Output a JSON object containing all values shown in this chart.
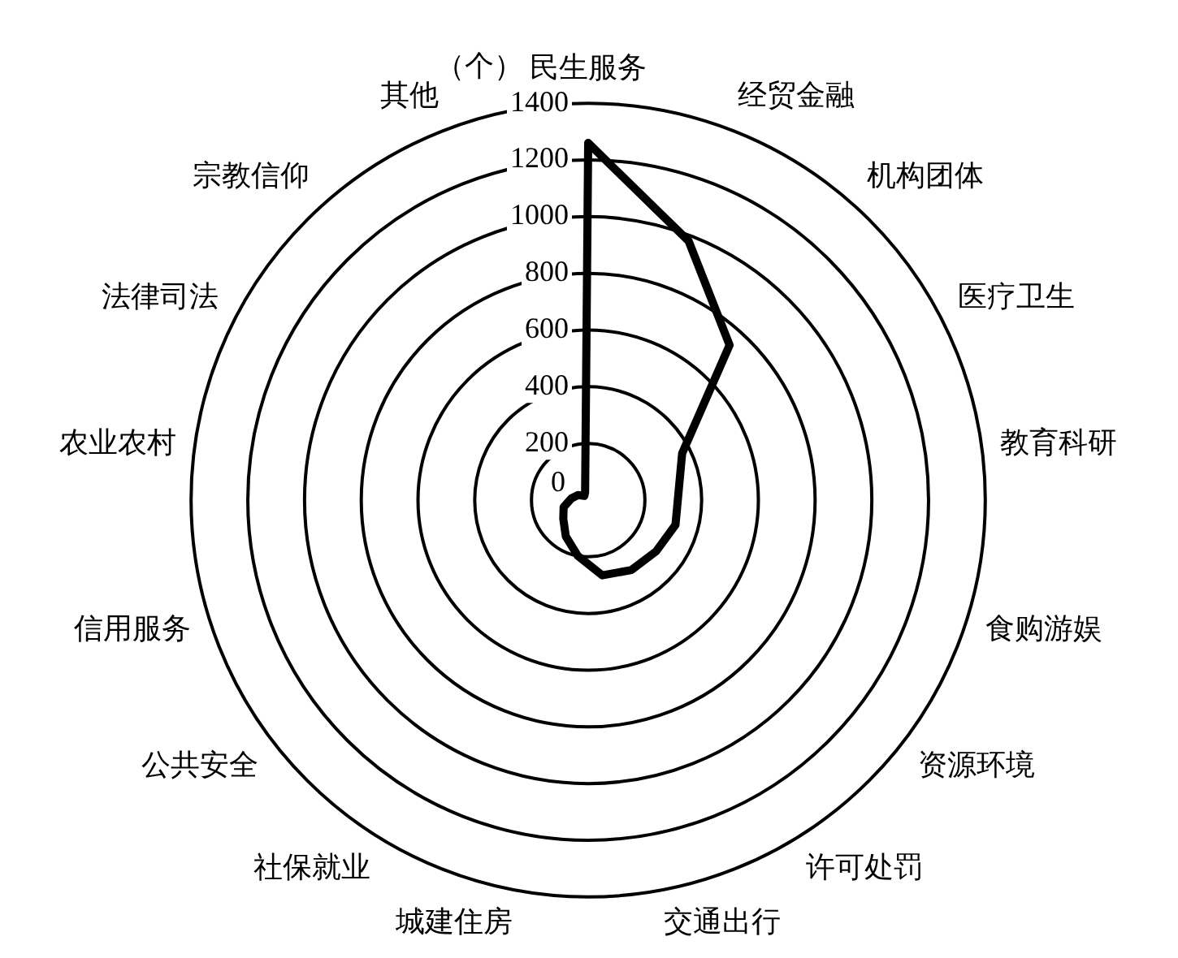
{
  "chart_data": {
    "type": "radar",
    "ylabel": "（个）",
    "categories": [
      "民生服务",
      "经贸金融",
      "机构团体",
      "医疗卫生",
      "教育科研",
      "食购游娱",
      "资源环境",
      "许可处罚",
      "交通出行",
      "城建住房",
      "社保就业",
      "公共安全",
      "信用服务",
      "农业农村",
      "法律司法",
      "宗教信仰",
      "其他"
    ],
    "series": [
      {
        "color": "#000000",
        "values": [
          1260,
          980,
          740,
          370,
          320,
          320,
          300,
          290,
          270,
          200,
          150,
          110,
          90,
          60,
          40,
          20,
          30
        ]
      }
    ],
    "ylim": [
      0,
      1400
    ],
    "yticks": [
      0,
      200,
      400,
      600,
      800,
      1000,
      1200,
      1400
    ],
    "grid": true
  }
}
